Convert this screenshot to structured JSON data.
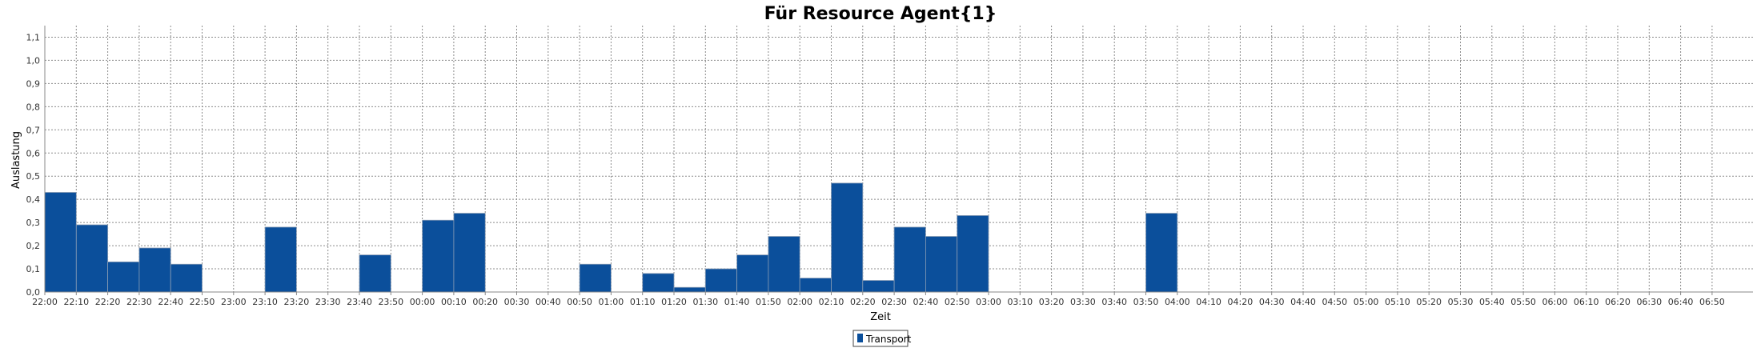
{
  "chart_data": {
    "type": "bar",
    "title": "Für Resource Agent{1}",
    "xlabel": "Zeit",
    "ylabel": "Auslastung",
    "ylim": [
      0,
      1.15
    ],
    "yticks": [
      "0,0",
      "0,1",
      "0,2",
      "0,3",
      "0,4",
      "0,5",
      "0,6",
      "0,7",
      "0,8",
      "0,9",
      "1,0",
      "1,1"
    ],
    "categories": [
      "22:00",
      "22:10",
      "22:20",
      "22:30",
      "22:40",
      "22:50",
      "23:00",
      "23:10",
      "23:20",
      "23:30",
      "23:40",
      "23:50",
      "00:00",
      "00:10",
      "00:20",
      "00:30",
      "00:40",
      "00:50",
      "01:00",
      "01:10",
      "01:20",
      "01:30",
      "01:40",
      "01:50",
      "02:00",
      "02:10",
      "02:20",
      "02:30",
      "02:40",
      "02:50",
      "03:00",
      "03:10",
      "03:20",
      "03:30",
      "03:40",
      "03:50",
      "04:00",
      "04:10",
      "04:20",
      "04:30",
      "04:40",
      "04:50",
      "05:00",
      "05:10",
      "05:20",
      "05:30",
      "05:40",
      "05:50",
      "06:00",
      "06:10",
      "06:20",
      "06:30",
      "06:40",
      "06:50"
    ],
    "grid": true,
    "legend_position": "bottom-center",
    "series": [
      {
        "name": "Transport",
        "color": "#0b4f9b",
        "values": [
          0.43,
          0.29,
          0.13,
          0.19,
          0.12,
          0,
          0,
          0.28,
          0,
          0,
          0.16,
          0,
          0.31,
          0.34,
          0,
          0,
          0,
          0.12,
          0,
          0.08,
          0.02,
          0.1,
          0.16,
          0.24,
          0.06,
          0.47,
          0.05,
          0.28,
          0.24,
          0.33,
          0,
          0,
          0,
          0,
          0,
          0.34,
          0,
          0,
          0,
          0,
          0,
          0,
          0,
          0,
          0,
          0,
          0,
          0,
          0,
          0,
          0,
          0,
          0,
          0
        ]
      }
    ]
  }
}
